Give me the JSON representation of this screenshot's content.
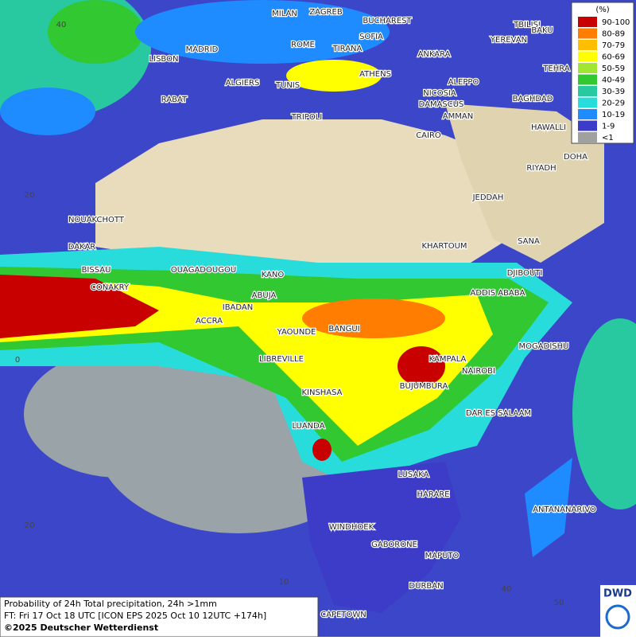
{
  "legend": {
    "unit": "(%)",
    "items": [
      {
        "label": "90-100",
        "color": "#c80000"
      },
      {
        "label": "80-89",
        "color": "#ff7d00"
      },
      {
        "label": "70-79",
        "color": "#ffbe00"
      },
      {
        "label": "60-69",
        "color": "#ffff00"
      },
      {
        "label": "50-59",
        "color": "#a0e632"
      },
      {
        "label": "40-49",
        "color": "#32c832"
      },
      {
        "label": "30-39",
        "color": "#28c8a0"
      },
      {
        "label": "20-29",
        "color": "#28dcdc"
      },
      {
        "label": "10-19",
        "color": "#1e8cff"
      },
      {
        "label": "1-9",
        "color": "#3c3cc8"
      },
      {
        "label": "<1",
        "color": "#a0a0a0"
      }
    ]
  },
  "cities": [
    "MILAN",
    "ZAGREB",
    "BUCHAREST",
    "TBILISI",
    "BAKU",
    "SOFIA",
    "YEREVAN",
    "ROME",
    "TIRANA",
    "ANKARA",
    "MADRID",
    "LISBON",
    "ATHENS",
    "TEHRA",
    "ALGIERS",
    "TUNIS",
    "ALEPPO",
    "RABAT",
    "NICOSIA",
    "BAGHDAD",
    "DAMASCUS",
    "TRIPOLI",
    "AMMAN",
    "HAWALLI",
    "CAIRO",
    "DOHA",
    "RIYADH",
    "JEDDAH",
    "NOUAKCHOTT",
    "SANA",
    "KHARTOUM",
    "DAKAR",
    "BISSAU",
    "OUAGADOUGOU",
    "DJIBOUTI",
    "KANO",
    "CONAKRY",
    "ABUJA",
    "ADDIS ABABA",
    "IBADAN",
    "ACCRA",
    "BANGUI",
    "YAOUNDE",
    "MOGADISHU",
    "LIBREVILLE",
    "KAMPALA",
    "NAIROBI",
    "BUJUMBURA",
    "KINSHASA",
    "DAR ES SALAAM",
    "LUANDA",
    "LUSAKA",
    "HARARE",
    "ANTANANARIVO",
    "WINDHOEK",
    "GABORONE",
    "MAPUTO",
    "DURBAN",
    "CAPETOWN"
  ],
  "grid_labels": [
    "40",
    "20",
    "0",
    "20",
    "10",
    "40",
    "50"
  ],
  "caption": [
    "Probability of 24h Total precipitation, 24h >1mm",
    "FT: Fri 17 Oct 18 UTC [ICON EPS 2025 Oct 10 12UTC +174h]",
    "©2025 Deutscher Wetterdienst"
  ],
  "logo": "DWD"
}
